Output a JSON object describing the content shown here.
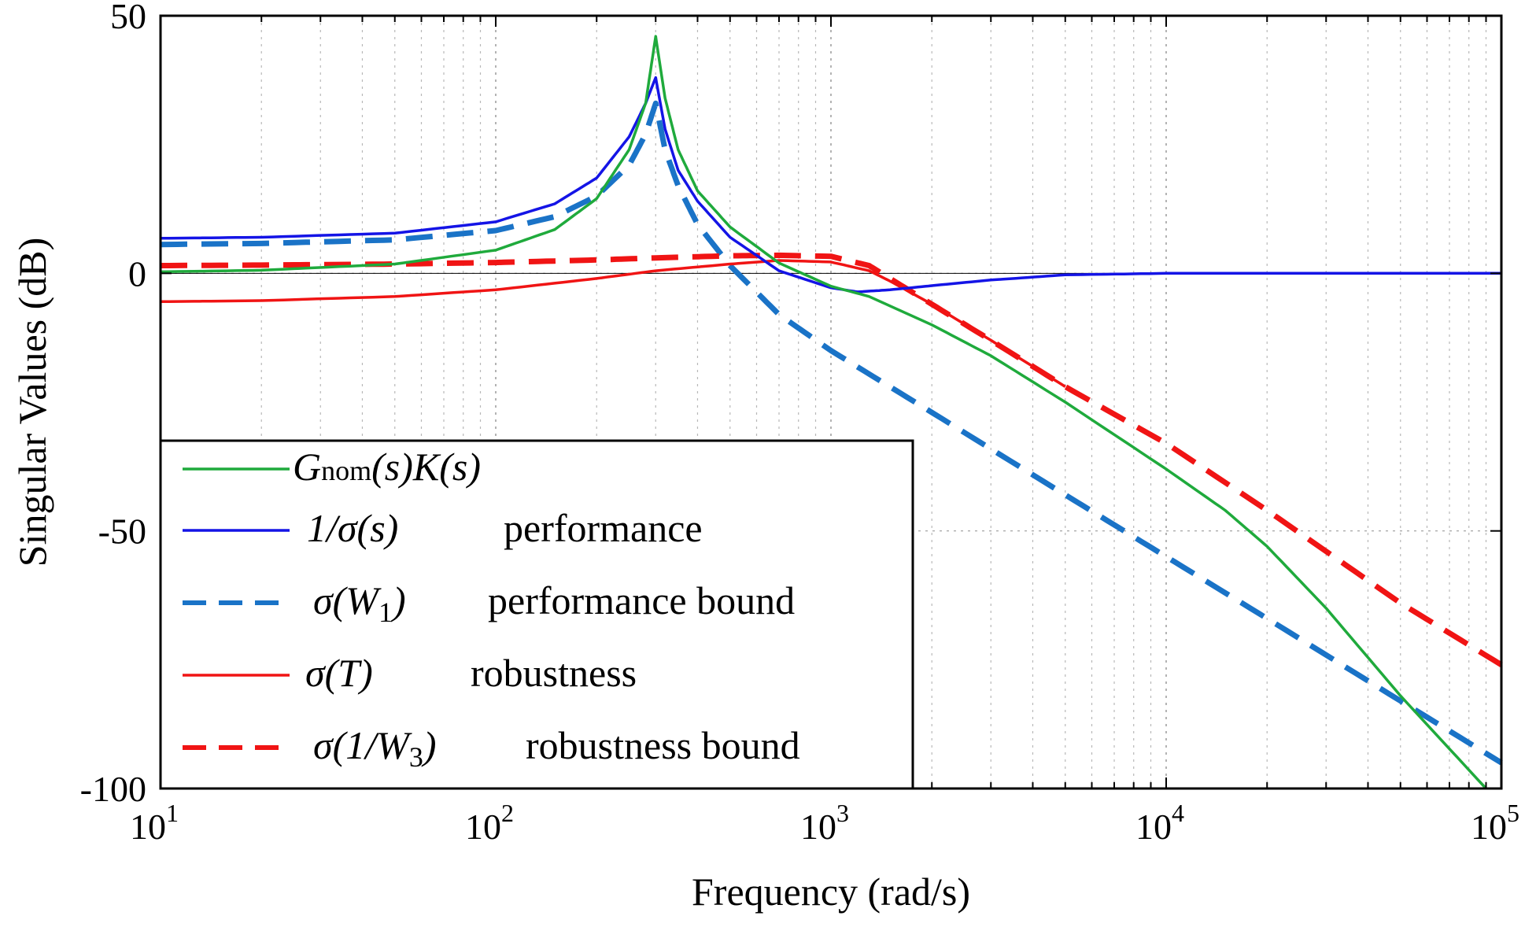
{
  "chart_data": {
    "type": "line",
    "title": "",
    "xlabel": "Frequency (rad/s)",
    "ylabel": "Singular Values (dB)",
    "xscale": "log",
    "xlim": [
      10,
      100000
    ],
    "ylim": [
      -100,
      50
    ],
    "x_ticks": [
      {
        "base": "10",
        "exp": "1"
      },
      {
        "base": "10",
        "exp": "2"
      },
      {
        "base": "10",
        "exp": "3"
      },
      {
        "base": "10",
        "exp": "4"
      },
      {
        "base": "10",
        "exp": "5"
      }
    ],
    "y_ticks": [
      "50",
      "0",
      "-50",
      "-100"
    ],
    "y_tick_values": [
      50,
      0,
      -50,
      -100
    ],
    "grid": true,
    "legend_position": "lower-left",
    "series": [
      {
        "name": "G_nom(s)K(s)",
        "color": "#1faa3c",
        "style": "solid",
        "x": [
          10,
          20,
          50,
          100,
          150,
          200,
          250,
          280,
          300,
          320,
          350,
          400,
          500,
          700,
          1000,
          1300,
          2000,
          3000,
          5000,
          10000,
          15000,
          20000,
          30000,
          50000,
          90000
        ],
        "y": [
          0.3,
          0.6,
          1.8,
          4.5,
          8.5,
          14.5,
          24,
          33,
          46,
          34,
          24,
          16,
          9,
          2,
          -2.5,
          -4.5,
          -10,
          -16,
          -25,
          -38,
          -46,
          -53,
          -65,
          -82,
          -100
        ]
      },
      {
        "name": "1/σ(s) performance",
        "color": "#1414e6",
        "style": "solid",
        "x": [
          10,
          20,
          50,
          100,
          150,
          200,
          250,
          280,
          300,
          320,
          350,
          400,
          500,
          700,
          1000,
          1200,
          1500,
          2000,
          3000,
          5000,
          10000,
          100000
        ],
        "y": [
          6.8,
          7,
          7.8,
          10,
          13.5,
          18.5,
          26.5,
          33,
          38,
          28,
          20,
          14,
          7,
          0.5,
          -2.8,
          -3.6,
          -3.2,
          -2.4,
          -1.3,
          -0.3,
          0,
          0
        ]
      },
      {
        "name": "σ(W1) performance bound",
        "color": "#1a73c7",
        "style": "dashed",
        "x": [
          10,
          20,
          50,
          100,
          150,
          200,
          250,
          280,
          300,
          320,
          350,
          400,
          500,
          700,
          1000,
          2000,
          5000,
          10000,
          20000,
          50000,
          100000
        ],
        "y": [
          5.6,
          5.8,
          6.5,
          8.3,
          11,
          15,
          21,
          27,
          33,
          24,
          17,
          9.5,
          1.5,
          -8,
          -15,
          -27,
          -43,
          -55,
          -67,
          -83,
          -95
        ]
      },
      {
        "name": "σ(T) robustness",
        "color": "#f01414",
        "style": "solid",
        "x": [
          10,
          20,
          50,
          100,
          200,
          300,
          500,
          700,
          1000,
          1300,
          1500,
          2000,
          3000,
          5000
        ],
        "y": [
          -5.5,
          -5.3,
          -4.5,
          -3.2,
          -1,
          0.5,
          1.8,
          2.5,
          2.2,
          0.5,
          -1.5,
          -6,
          -13,
          -22
        ]
      },
      {
        "name": "σ(1/W3) robustness bound",
        "color": "#f01414",
        "style": "dashed",
        "x": [
          10,
          20,
          50,
          100,
          200,
          300,
          500,
          700,
          1000,
          1300,
          1500,
          2000,
          3000,
          5000,
          10000,
          20000,
          50000,
          100000
        ],
        "y": [
          1.5,
          1.6,
          1.8,
          2.1,
          2.6,
          3,
          3.4,
          3.5,
          3.3,
          1.5,
          -1,
          -6,
          -13,
          -22,
          -33,
          -46,
          -64,
          -76
        ]
      }
    ],
    "legend": [
      {
        "main": "G",
        "sub": "nom",
        "rest": "(s)K(s)",
        "desc": "",
        "color": "#1faa3c",
        "style": "solid"
      },
      {
        "main": "1/σ(s)",
        "desc": "performance",
        "color": "#1414e6",
        "style": "solid"
      },
      {
        "main": "σ(W",
        "sub": "1",
        "rest": ")",
        "desc": "performance bound",
        "color": "#1a73c7",
        "style": "dashed"
      },
      {
        "main": "σ(T)",
        "desc": "robustness",
        "color": "#f01414",
        "style": "solid"
      },
      {
        "main": "σ(1/W",
        "sub": "3",
        "rest": ")",
        "desc": "robustness bound",
        "color": "#f01414",
        "style": "dashed"
      }
    ]
  }
}
